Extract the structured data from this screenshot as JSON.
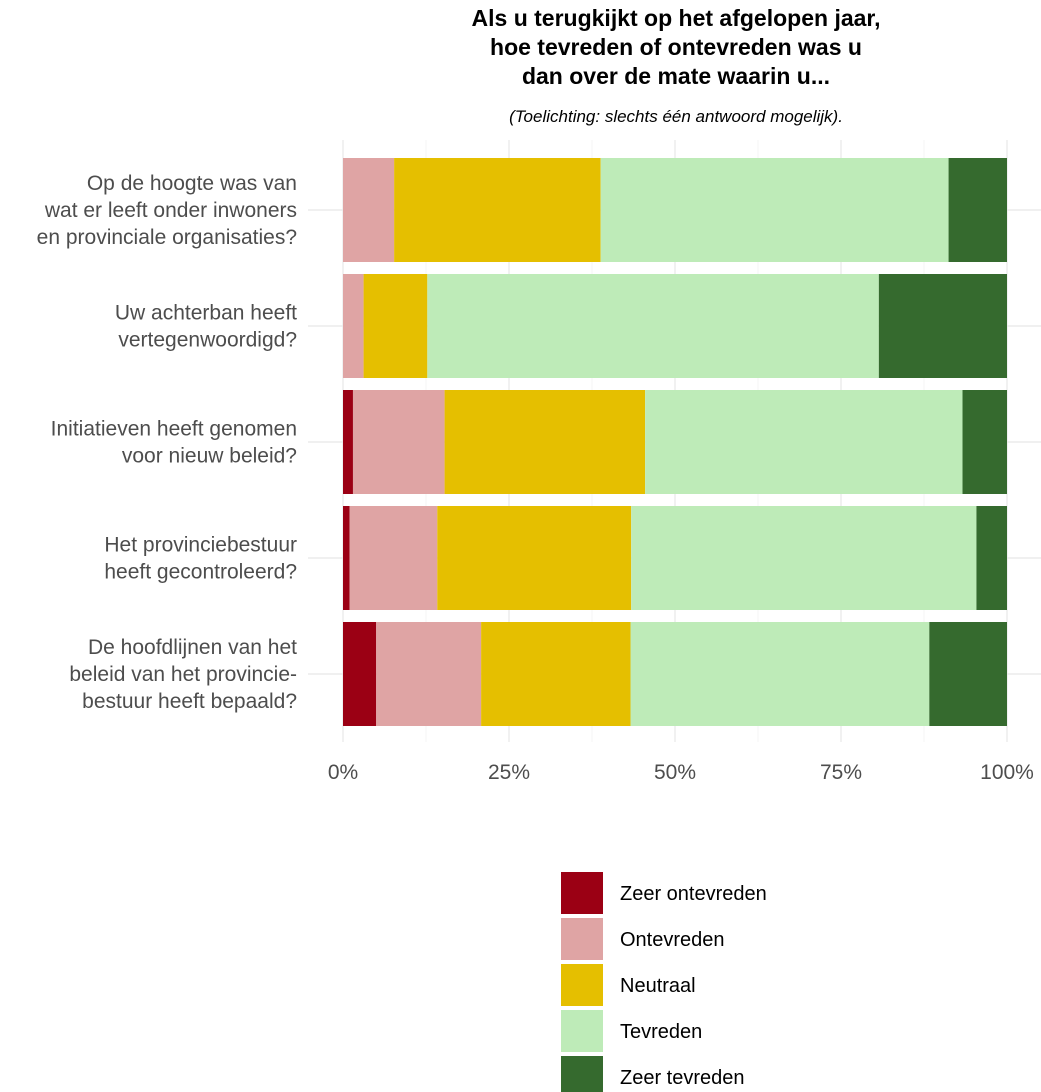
{
  "chart_data": {
    "type": "bar",
    "orientation": "horizontal",
    "stacked": "percent",
    "title_lines": [
      "Als u terugkijkt op het afgelopen jaar,",
      "hoe tevreden of ontevreden was u",
      "dan over de mate waarin u..."
    ],
    "subtitle": "(Toelichting: slechts één antwoord mogelijk).",
    "categories": [
      [
        "Op de hoogte was van",
        "wat er leeft onder inwoners",
        "en provinciale organisaties?"
      ],
      [
        "Uw achterban heeft",
        "vertegenwoordigd?"
      ],
      [
        "Initiatieven heeft genomen",
        "voor nieuw beleid?"
      ],
      [
        "Het provinciebestuur",
        "heeft gecontroleerd?"
      ],
      [
        "De hoofdlijnen van het",
        "beleid van het provincie-",
        "bestuur heeft bepaald?"
      ]
    ],
    "series": [
      {
        "name": "Zeer ontevreden",
        "color": "#9b0014",
        "values": [
          0,
          0,
          1.5,
          1.0,
          5.0
        ]
      },
      {
        "name": "Ontevreden",
        "color": "#dfa4a4",
        "values": [
          7.7,
          3.1,
          13.8,
          13.2,
          15.8
        ]
      },
      {
        "name": "Neutraal",
        "color": "#e5bf00",
        "values": [
          31.1,
          9.6,
          30.2,
          29.2,
          22.5
        ]
      },
      {
        "name": "Tevreden",
        "color": "#beebb8",
        "values": [
          52.4,
          68.0,
          47.8,
          52.0,
          45.0
        ]
      },
      {
        "name": "Zeer tevreden",
        "color": "#356a2e",
        "values": [
          8.8,
          19.3,
          6.7,
          4.6,
          11.7
        ]
      }
    ],
    "x_ticks": [
      "0%",
      "25%",
      "50%",
      "75%",
      "100%"
    ],
    "xlim": [
      0,
      100
    ],
    "grid": true,
    "legend_position": "bottom"
  }
}
